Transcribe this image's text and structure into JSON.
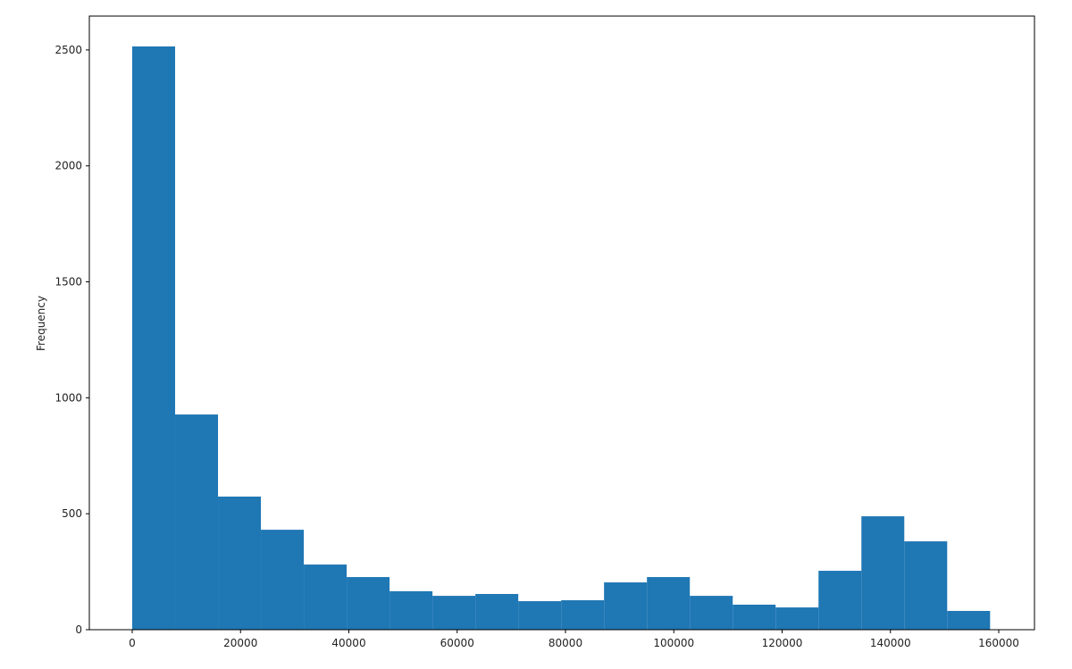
{
  "chart_data": {
    "type": "histogram",
    "ylabel": "Frequency",
    "bins": [
      0,
      7920,
      15840,
      23760,
      31680,
      39600,
      47520,
      55440,
      63360,
      71280,
      79200,
      87120,
      95040,
      102960,
      110880,
      118800,
      126720,
      134640,
      142560,
      150480,
      158400
    ],
    "values": [
      2515,
      928,
      574,
      431,
      281,
      227,
      166,
      146,
      154,
      123,
      127,
      204,
      227,
      146,
      108,
      96,
      254,
      489,
      381,
      81
    ],
    "color": "#1f77b4",
    "xlim": [
      -7918,
      166598
    ],
    "ylim": [
      0,
      2646
    ],
    "xticks": [
      0,
      20000,
      40000,
      60000,
      80000,
      100000,
      120000,
      140000,
      160000
    ],
    "yticks": [
      0,
      500,
      1000,
      1500,
      2000,
      2500
    ]
  }
}
